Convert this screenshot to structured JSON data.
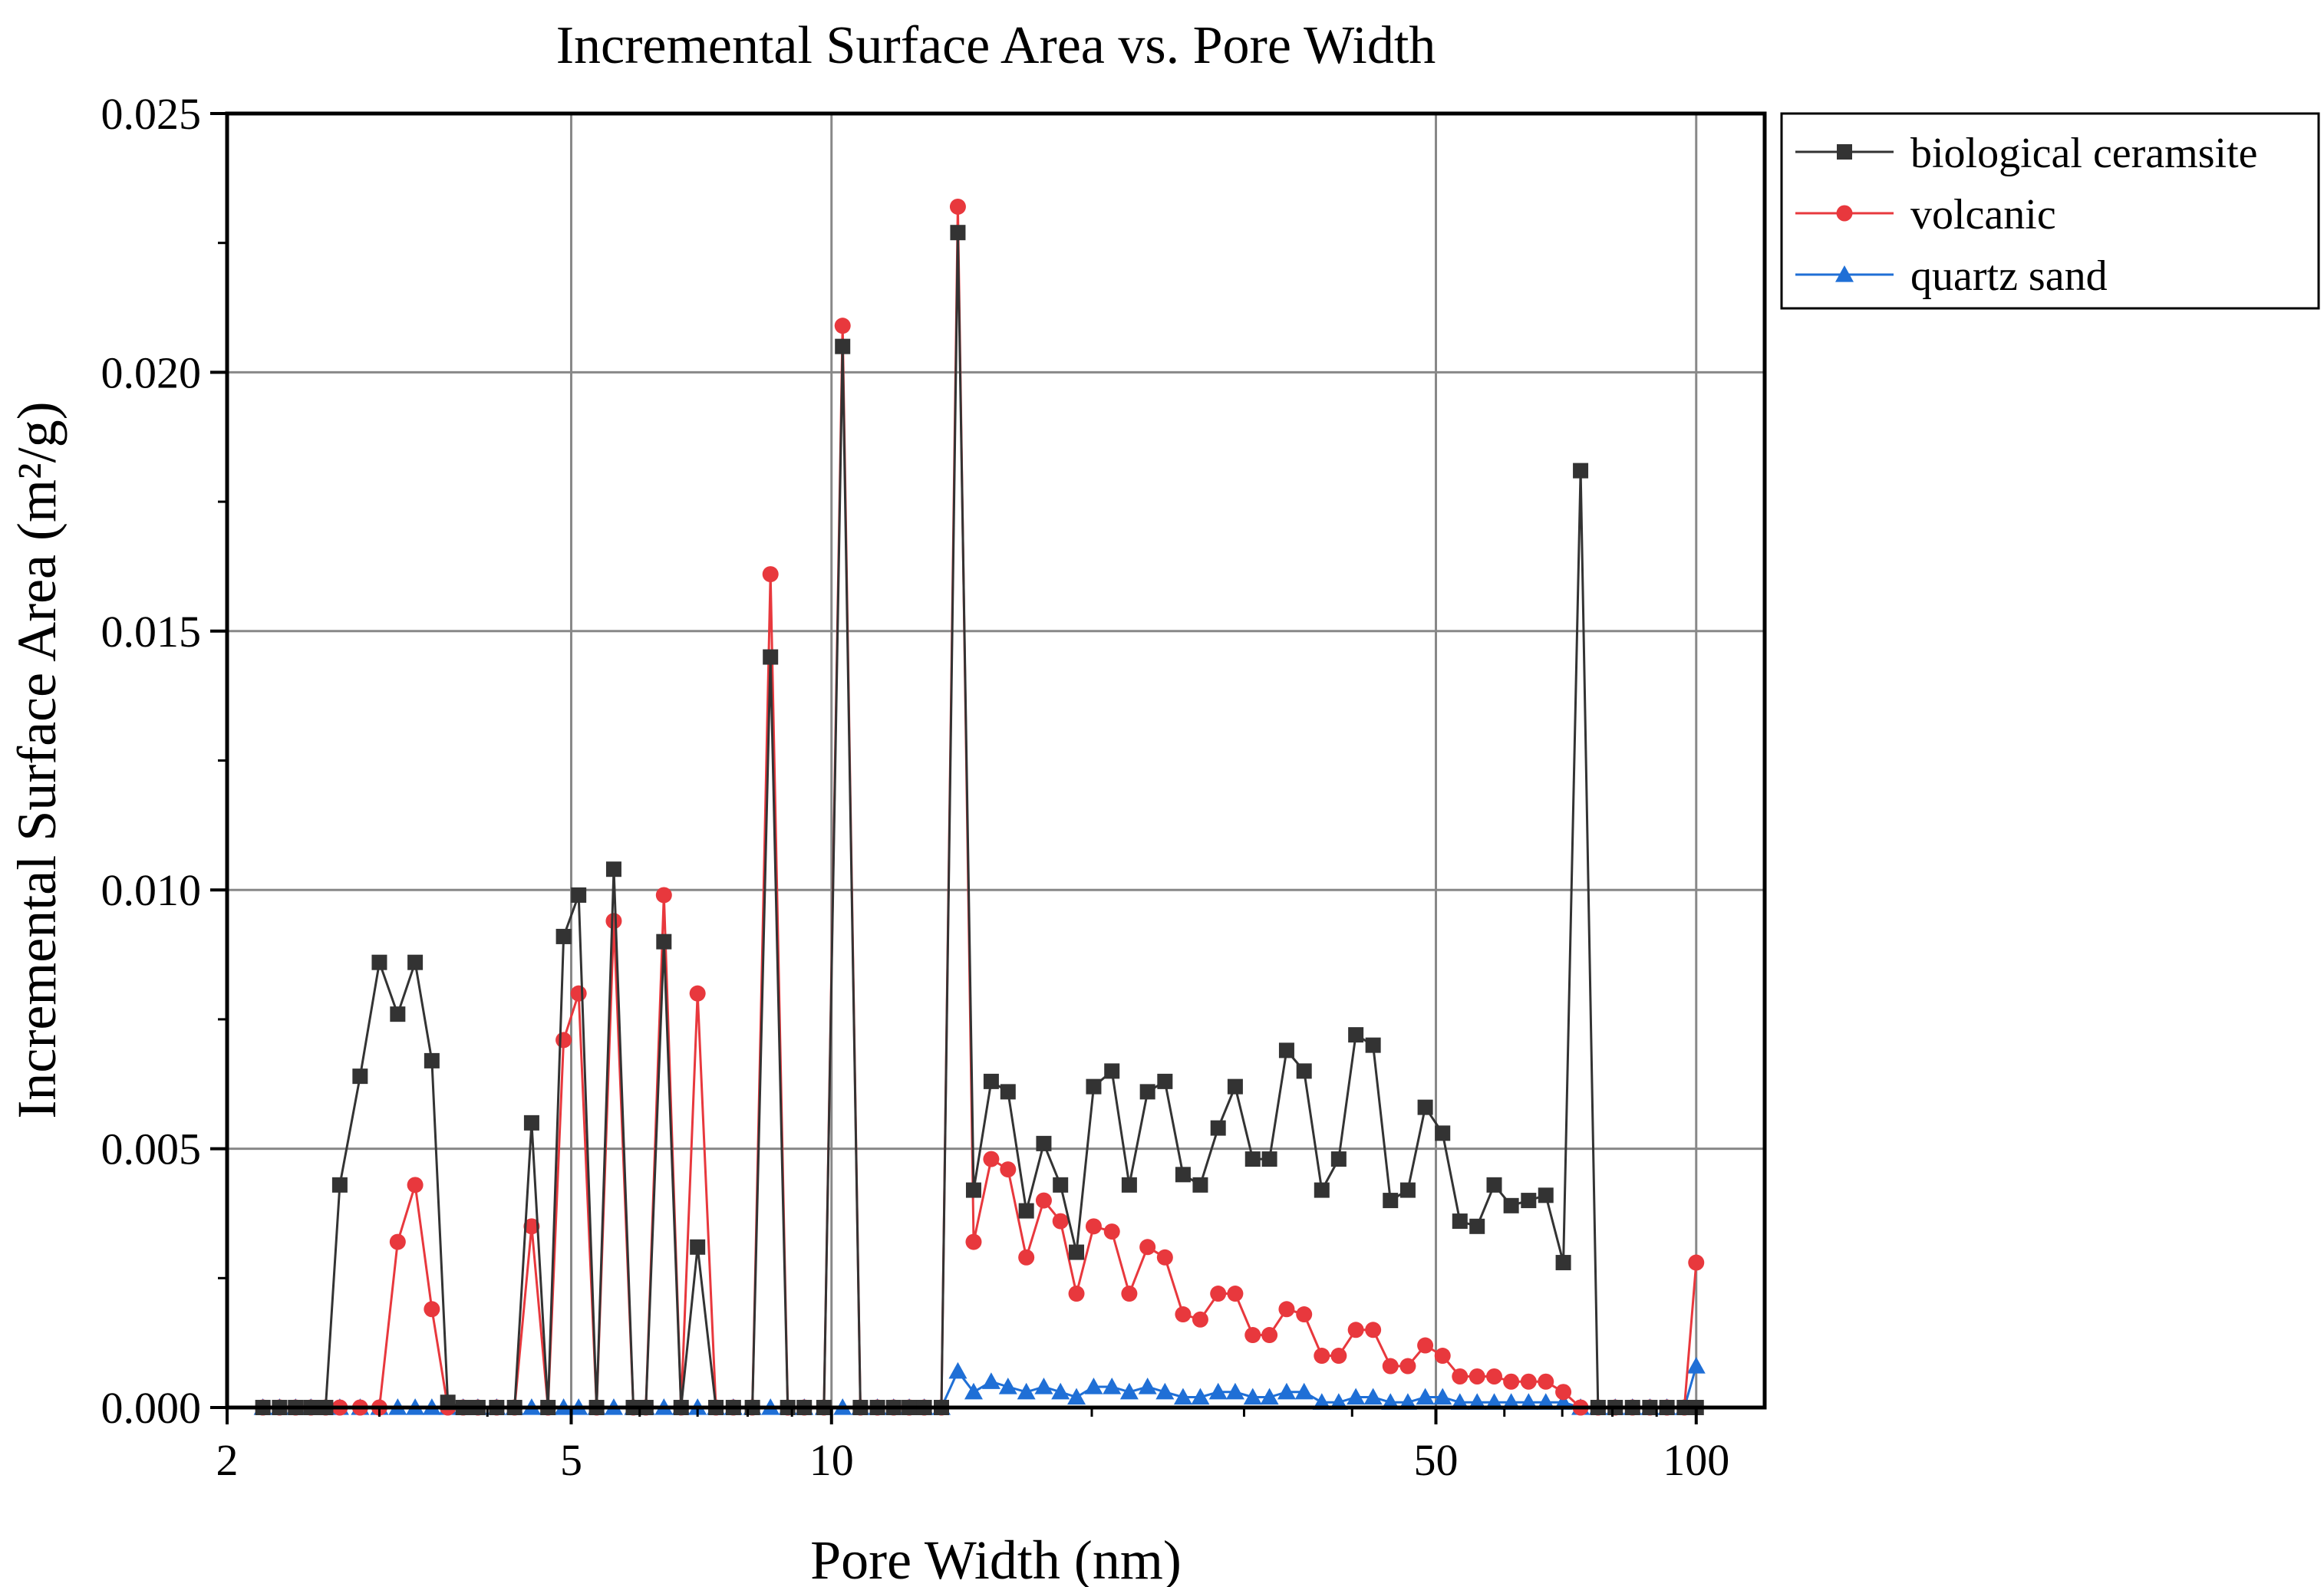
{
  "chart_data": {
    "type": "line",
    "title": "Incremental Surface Area vs. Pore Width",
    "xlabel": "Pore Width (nm)",
    "ylabel": "Incremental Surface Area (m²/g)",
    "xscale": "log",
    "xlim": [
      2,
      120
    ],
    "ylim": [
      0,
      0.025
    ],
    "xticks": [
      2,
      5,
      10,
      50,
      100
    ],
    "xtick_labels": [
      "2",
      "5",
      "10",
      "50",
      "100"
    ],
    "yticks": [
      0,
      0.005,
      0.01,
      0.015,
      0.02,
      0.025
    ],
    "ytick_labels": [
      "0.000",
      "0.005",
      "0.010",
      "0.015",
      "0.020",
      "0.025"
    ],
    "grid": true,
    "legend_position": "outside-top-right",
    "series": [
      {
        "name": "biological ceramsite",
        "color": "#333333",
        "marker": "square",
        "x": [
          2.2,
          2.3,
          2.4,
          2.5,
          2.6,
          2.7,
          2.85,
          3.0,
          3.15,
          3.3,
          3.45,
          3.6,
          3.75,
          3.9,
          4.1,
          4.3,
          4.5,
          4.7,
          4.9,
          5.1,
          5.35,
          5.6,
          5.9,
          6.1,
          6.4,
          6.7,
          7.0,
          7.35,
          7.7,
          8.1,
          8.5,
          8.9,
          9.3,
          9.8,
          10.3,
          10.8,
          11.3,
          11.8,
          12.3,
          12.8,
          13.4,
          14.0,
          14.6,
          15.3,
          16.0,
          16.8,
          17.6,
          18.4,
          19.2,
          20.1,
          21.1,
          22.1,
          23.2,
          24.3,
          25.5,
          26.7,
          28.0,
          29.3,
          30.7,
          32.1,
          33.6,
          35.2,
          36.9,
          38.6,
          40.4,
          42.3,
          44.3,
          46.4,
          48.6,
          50.9,
          53.3,
          55.8,
          58.4,
          61.1,
          64.0,
          67.0,
          70.2,
          73.5,
          77.0,
          80.6,
          84.4,
          88.4,
          92.5,
          96.9,
          100.0
        ],
        "y": [
          0,
          0,
          0,
          0,
          0,
          0.0043,
          0.0064,
          0.0086,
          0.0076,
          0.0086,
          0.0067,
          0.0001,
          0,
          0,
          0,
          0,
          0.0055,
          0,
          0.0091,
          0.0099,
          0,
          0.0104,
          0,
          0,
          0.009,
          0,
          0.0031,
          0,
          0,
          0,
          0.0145,
          0,
          0,
          0,
          0.0205,
          0,
          0,
          0,
          0,
          0,
          0,
          0.0227,
          0.0042,
          0.0063,
          0.0061,
          0.0038,
          0.0051,
          0.0043,
          0.003,
          0.0062,
          0.0065,
          0.0043,
          0.0061,
          0.0063,
          0.0045,
          0.0043,
          0.0054,
          0.0062,
          0.0048,
          0.0048,
          0.0069,
          0.0065,
          0.0042,
          0.0048,
          0.0072,
          0.007,
          0.004,
          0.0042,
          0.0058,
          0.0053,
          0.0036,
          0.0035,
          0.0043,
          0.0039,
          0.004,
          0.0041,
          0.0028,
          0.0181,
          0,
          0,
          0,
          0,
          0,
          0,
          0
        ]
      },
      {
        "name": "volcanic",
        "color": "#e8383d",
        "marker": "circle",
        "x": [
          2.2,
          2.3,
          2.4,
          2.5,
          2.6,
          2.7,
          2.85,
          3.0,
          3.15,
          3.3,
          3.45,
          3.6,
          3.75,
          3.9,
          4.1,
          4.3,
          4.5,
          4.7,
          4.9,
          5.1,
          5.35,
          5.6,
          5.9,
          6.1,
          6.4,
          6.7,
          7.0,
          7.35,
          7.7,
          8.1,
          8.5,
          8.9,
          9.3,
          9.8,
          10.3,
          10.8,
          11.3,
          11.8,
          12.3,
          12.8,
          13.4,
          14.0,
          14.6,
          15.3,
          16.0,
          16.8,
          17.6,
          18.4,
          19.2,
          20.1,
          21.1,
          22.1,
          23.2,
          24.3,
          25.5,
          26.7,
          28.0,
          29.3,
          30.7,
          32.1,
          33.6,
          35.2,
          36.9,
          38.6,
          40.4,
          42.3,
          44.3,
          46.4,
          48.6,
          50.9,
          53.3,
          55.8,
          58.4,
          61.1,
          64.0,
          67.0,
          70.2,
          73.5,
          77.0,
          80.6,
          84.4,
          88.4,
          92.5,
          96.9,
          100.0
        ],
        "y": [
          0,
          0,
          0,
          0,
          0,
          0,
          0,
          0,
          0.0032,
          0.0043,
          0.0019,
          0,
          0,
          0,
          0,
          0,
          0.0035,
          0,
          0.0071,
          0.008,
          0,
          0.0094,
          0,
          0,
          0.0099,
          0,
          0.008,
          0,
          0,
          0,
          0.0161,
          0,
          0,
          0,
          0.0209,
          0,
          0,
          0,
          0,
          0,
          0,
          0.0232,
          0.0032,
          0.0048,
          0.0046,
          0.0029,
          0.004,
          0.0036,
          0.0022,
          0.0035,
          0.0034,
          0.0022,
          0.0031,
          0.0029,
          0.0018,
          0.0017,
          0.0022,
          0.0022,
          0.0014,
          0.0014,
          0.0019,
          0.0018,
          0.001,
          0.001,
          0.0015,
          0.0015,
          0.0008,
          0.0008,
          0.0012,
          0.001,
          0.0006,
          0.0006,
          0.0006,
          0.0005,
          0.0005,
          0.0005,
          0.0003,
          0,
          0,
          0,
          0,
          0,
          0,
          0,
          0.0028
        ]
      },
      {
        "name": "quartz sand",
        "color": "#1f6fd6",
        "marker": "triangle",
        "x": [
          2.2,
          2.3,
          2.4,
          2.5,
          2.6,
          2.7,
          2.85,
          3.0,
          3.15,
          3.3,
          3.45,
          3.6,
          3.75,
          3.9,
          4.1,
          4.3,
          4.5,
          4.7,
          4.9,
          5.1,
          5.35,
          5.6,
          5.9,
          6.1,
          6.4,
          6.7,
          7.0,
          7.35,
          7.7,
          8.1,
          8.5,
          8.9,
          9.3,
          9.8,
          10.3,
          10.8,
          11.3,
          11.8,
          12.3,
          12.8,
          13.4,
          14.0,
          14.6,
          15.3,
          16.0,
          16.8,
          17.6,
          18.4,
          19.2,
          20.1,
          21.1,
          22.1,
          23.2,
          24.3,
          25.5,
          26.7,
          28.0,
          29.3,
          30.7,
          32.1,
          33.6,
          35.2,
          36.9,
          38.6,
          40.4,
          42.3,
          44.3,
          46.4,
          48.6,
          50.9,
          53.3,
          55.8,
          58.4,
          61.1,
          64.0,
          67.0,
          70.2,
          73.5,
          77.0,
          80.6,
          84.4,
          88.4,
          92.5,
          96.9,
          100.0
        ],
        "y": [
          0,
          0,
          0,
          0,
          0,
          0,
          0,
          0,
          0,
          0,
          0,
          0,
          0,
          0,
          0,
          0,
          0,
          0,
          0,
          0,
          0,
          0,
          0,
          0,
          0,
          0,
          0,
          0,
          0,
          0,
          0,
          0,
          0,
          0,
          0,
          0,
          0,
          0,
          0,
          0,
          0,
          0.0007,
          0.0003,
          0.0005,
          0.0004,
          0.0003,
          0.0004,
          0.0003,
          0.0002,
          0.0004,
          0.0004,
          0.0003,
          0.0004,
          0.0003,
          0.0002,
          0.0002,
          0.0003,
          0.0003,
          0.0002,
          0.0002,
          0.0003,
          0.0003,
          0.0001,
          0.0001,
          0.0002,
          0.0002,
          0.0001,
          0.0001,
          0.0002,
          0.0002,
          0.0001,
          0.0001,
          0.0001,
          0.0001,
          0.0001,
          0.0001,
          0.0001,
          0,
          0,
          0,
          0,
          0,
          0,
          0,
          0.0008
        ]
      }
    ]
  }
}
